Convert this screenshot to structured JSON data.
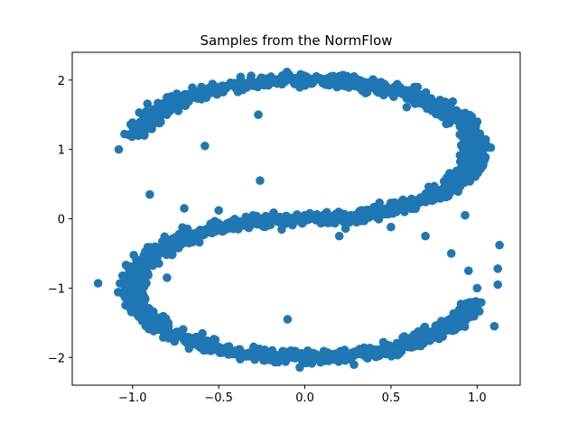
{
  "chart_data": {
    "type": "scatter",
    "title": "Samples from the NormFlow",
    "xlabel": "",
    "ylabel": "",
    "xlim": [
      -1.35,
      1.25
    ],
    "ylim": [
      -2.4,
      2.4
    ],
    "x_ticks": [
      -1.0,
      -0.5,
      0.0,
      0.5,
      1.0
    ],
    "x_tick_labels": [
      "−1.0",
      "−0.5",
      "0.0",
      "0.5",
      "1.0"
    ],
    "y_ticks": [
      -2,
      -1,
      0,
      1,
      2
    ],
    "y_tick_labels": [
      "−2",
      "−1",
      "0",
      "1",
      "2"
    ],
    "grid": false,
    "legend": "none",
    "marker_color": "#1f77b4",
    "series": [
      {
        "shape": "S-curve",
        "point_count": 2000,
        "x": [
          -1.08,
          -1.0,
          -0.92,
          -0.8,
          -0.6,
          -0.4,
          -0.2,
          0.0,
          0.2,
          0.4,
          0.6,
          0.8,
          0.95,
          1.0,
          0.97,
          -0.9,
          -0.7,
          -0.5,
          -0.3,
          -0.1,
          0.0,
          0.1,
          0.3,
          0.5,
          0.7,
          0.85,
          0.95,
          1.0,
          0.97,
          0.9,
          0.8,
          0.6,
          0.4,
          0.2,
          0.0,
          -0.2,
          -0.4,
          -0.6,
          -0.8,
          -0.95,
          -1.05,
          -1.2,
          1.13,
          1.12,
          1.1,
          1.12,
          -0.27,
          -0.58,
          -0.8,
          -0.1,
          0.93,
          -0.26,
          0.2
        ],
        "y": [
          1.0,
          1.35,
          1.55,
          1.75,
          1.9,
          1.95,
          2.0,
          2.05,
          2.0,
          1.95,
          1.85,
          1.6,
          1.35,
          1.05,
          0.95,
          0.35,
          0.15,
          0.12,
          0.05,
          0.0,
          0.0,
          -0.02,
          -0.05,
          -0.12,
          -0.25,
          -0.5,
          -0.75,
          -1.0,
          -1.3,
          -1.55,
          -1.7,
          -1.85,
          -1.9,
          -1.95,
          -2.0,
          -1.95,
          -1.9,
          -1.75,
          -1.55,
          -1.3,
          -1.1,
          -0.93,
          -0.38,
          -0.72,
          -1.55,
          -0.95,
          1.5,
          1.05,
          -0.85,
          -1.45,
          0.05,
          0.55,
          -0.25
        ]
      }
    ]
  }
}
